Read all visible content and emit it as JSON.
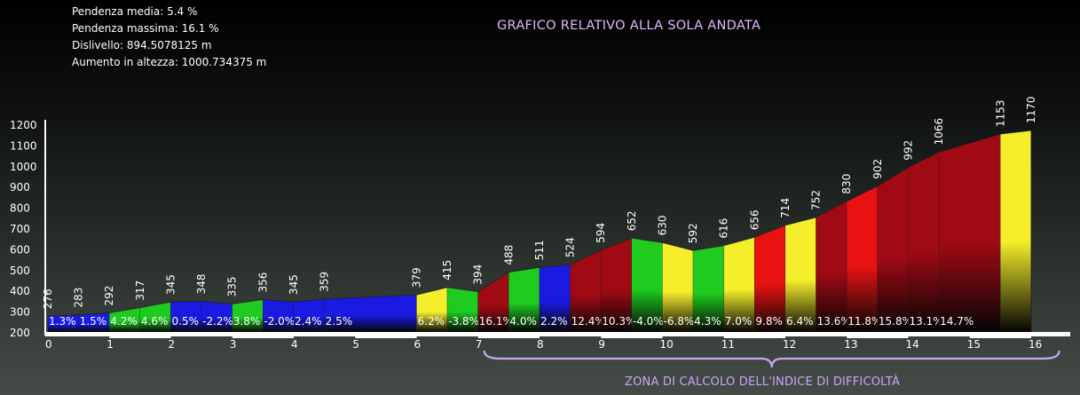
{
  "stats": {
    "avg_grade": "Pendenza media: 5.4 %",
    "max_grade": "Pendenza massima: 16.1 %",
    "elevation_gain": "Dislivello: 894.5078125 m",
    "total_ascent": "Aumento in altezza: 1000.734375 m"
  },
  "title": "GRAFICO RELATIVO ALLA SOLA ANDATA",
  "zone_label": "ZONA DI CALCOLO DELL'INDICE DI DIFFICOLTÀ",
  "colors": {
    "blue": "#1a1ae0",
    "green": "#1ecb1e",
    "yellow": "#f4ef2a",
    "red": "#e81212",
    "darkred": "#a00a14",
    "zone_brace": "#c9a6f7"
  },
  "chart_data": {
    "type": "area",
    "title": "GRAFICO RELATIVO ALLA SOLA ANDATA",
    "xlabel": "",
    "ylabel": "",
    "xlim": [
      0,
      16.5
    ],
    "ylim": [
      200,
      1200
    ],
    "y_ticks": [
      200,
      300,
      400,
      500,
      600,
      700,
      800,
      900,
      1000,
      1100,
      1200
    ],
    "x_ticks": [
      0,
      1,
      2,
      3,
      4,
      5,
      6,
      7,
      8,
      9,
      10,
      11,
      12,
      13,
      14,
      15,
      16
    ],
    "x": [
      0,
      0.5,
      1,
      1.5,
      2,
      2.5,
      3,
      3.5,
      4,
      4.5,
      5,
      5.5,
      6,
      6.5,
      7,
      7.5,
      8,
      8.5,
      9,
      9.5,
      10,
      10.5,
      11,
      11.5,
      12,
      12.5,
      13,
      13.5,
      14,
      14.5,
      15,
      15.5,
      16,
      16.5
    ],
    "altitudes": [
      276,
      283,
      292,
      317,
      345,
      348,
      335,
      356,
      345,
      359,
      379,
      415,
      394,
      488,
      511,
      524,
      594,
      652,
      630,
      592,
      616,
      656,
      714,
      752,
      830,
      902,
      992,
      1066,
      1153,
      1170
    ],
    "altitude_positions": [
      0,
      0.5,
      1,
      1.5,
      2,
      2.5,
      3,
      3.5,
      4,
      4.5,
      6,
      6.5,
      7,
      7.5,
      8,
      8.5,
      9,
      9.5,
      10,
      10.5,
      11,
      11.5,
      12,
      12.5,
      13,
      13.5,
      14,
      14.5,
      15.5,
      16
    ],
    "segments": [
      {
        "start": 0,
        "end": 0.5,
        "grade": "1.3%",
        "color": "blue"
      },
      {
        "start": 0.5,
        "end": 1,
        "grade": "1.5%",
        "color": "blue"
      },
      {
        "start": 1,
        "end": 1.5,
        "grade": "4.2%",
        "color": "green"
      },
      {
        "start": 1.5,
        "end": 2,
        "grade": "4.6%",
        "color": "green"
      },
      {
        "start": 2,
        "end": 2.5,
        "grade": "0.5%",
        "color": "blue"
      },
      {
        "start": 2.5,
        "end": 3,
        "grade": "-2.2%",
        "color": "blue"
      },
      {
        "start": 3,
        "end": 3.5,
        "grade": "3.8%",
        "color": "green"
      },
      {
        "start": 3.5,
        "end": 4,
        "grade": "-2.0%",
        "color": "blue"
      },
      {
        "start": 4,
        "end": 4.5,
        "grade": "2.4%",
        "color": "blue"
      },
      {
        "start": 4.5,
        "end": 6,
        "grade": "2.5%",
        "color": "blue"
      },
      {
        "start": 6,
        "end": 6.5,
        "grade": "6.2%",
        "color": "yellow"
      },
      {
        "start": 6.5,
        "end": 7,
        "grade": "-3.8%",
        "color": "green"
      },
      {
        "start": 7,
        "end": 7.5,
        "grade": "16.1%",
        "color": "darkred"
      },
      {
        "start": 7.5,
        "end": 8,
        "grade": "4.0%",
        "color": "green"
      },
      {
        "start": 8,
        "end": 8.5,
        "grade": "2.2%",
        "color": "blue"
      },
      {
        "start": 8.5,
        "end": 9,
        "grade": "12.4%",
        "color": "darkred"
      },
      {
        "start": 9,
        "end": 9.5,
        "grade": "10.3%",
        "color": "darkred"
      },
      {
        "start": 9.5,
        "end": 10,
        "grade": "-4.0%",
        "color": "green"
      },
      {
        "start": 10,
        "end": 10.5,
        "grade": "-6.8%",
        "color": "yellow"
      },
      {
        "start": 10.5,
        "end": 11,
        "grade": "4.3%",
        "color": "green"
      },
      {
        "start": 11,
        "end": 11.5,
        "grade": "7.0%",
        "color": "yellow"
      },
      {
        "start": 11.5,
        "end": 12,
        "grade": "9.8%",
        "color": "red"
      },
      {
        "start": 12,
        "end": 12.5,
        "grade": "6.4%",
        "color": "yellow"
      },
      {
        "start": 12.5,
        "end": 13,
        "grade": "13.6%",
        "color": "darkred"
      },
      {
        "start": 13,
        "end": 13.5,
        "grade": "11.8%",
        "color": "red"
      },
      {
        "start": 13.5,
        "end": 14,
        "grade": "15.8%",
        "color": "darkred"
      },
      {
        "start": 14,
        "end": 14.5,
        "grade": "13.1%",
        "color": "darkred"
      },
      {
        "start": 14.5,
        "end": 15.5,
        "grade": "14.7%",
        "color": "darkred"
      },
      {
        "start": 15.5,
        "end": 16,
        "grade": "",
        "color": "yellow"
      }
    ],
    "grid": false,
    "legend": "none"
  }
}
